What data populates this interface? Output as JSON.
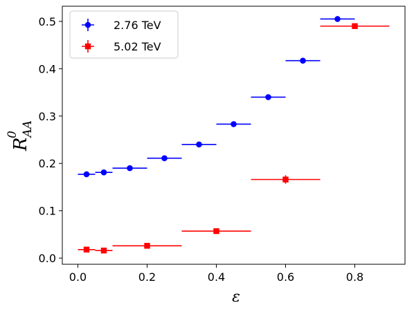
{
  "chart_data": {
    "type": "scatter",
    "title": "",
    "xlabel": "ε",
    "ylabel": {
      "main": "R",
      "sup": "0",
      "sub": "AA"
    },
    "xlim": [
      -0.045,
      0.945
    ],
    "ylim": [
      -0.013,
      0.532
    ],
    "x_ticks": [
      0.0,
      0.2,
      0.4,
      0.6,
      0.8
    ],
    "x_tick_labels": [
      "0.0",
      "0.2",
      "0.4",
      "0.6",
      "0.8"
    ],
    "y_ticks": [
      0.0,
      0.1,
      0.2,
      0.3,
      0.4,
      0.5
    ],
    "y_tick_labels": [
      "0.0",
      "0.1",
      "0.2",
      "0.3",
      "0.4",
      "0.5"
    ],
    "grid": false,
    "legend": "top-left",
    "series": [
      {
        "name": "2.76 TeV",
        "color": "#0000ff",
        "marker": "circle",
        "points": [
          {
            "x0": 0.0,
            "x1": 0.05,
            "xc": 0.025,
            "y": 0.177,
            "yerr": 0.004
          },
          {
            "x0": 0.05,
            "x1": 0.1,
            "xc": 0.075,
            "y": 0.181,
            "yerr": 0.004
          },
          {
            "x0": 0.1,
            "x1": 0.2,
            "xc": 0.15,
            "y": 0.19,
            "yerr": 0.004
          },
          {
            "x0": 0.2,
            "x1": 0.3,
            "xc": 0.25,
            "y": 0.211,
            "yerr": 0.004
          },
          {
            "x0": 0.3,
            "x1": 0.4,
            "xc": 0.35,
            "y": 0.24,
            "yerr": 0.004
          },
          {
            "x0": 0.4,
            "x1": 0.5,
            "xc": 0.45,
            "y": 0.283,
            "yerr": 0.004
          },
          {
            "x0": 0.5,
            "x1": 0.6,
            "xc": 0.55,
            "y": 0.34,
            "yerr": 0.004
          },
          {
            "x0": 0.6,
            "x1": 0.7,
            "xc": 0.65,
            "y": 0.417,
            "yerr": 0.004
          },
          {
            "x0": 0.7,
            "x1": 0.8,
            "xc": 0.75,
            "y": 0.505,
            "yerr": 0.004
          }
        ]
      },
      {
        "name": "5.02 TeV",
        "color": "#ff0000",
        "marker": "square",
        "points": [
          {
            "x0": 0.0,
            "x1": 0.05,
            "xc": 0.025,
            "y": 0.018,
            "yerr": 0.004
          },
          {
            "x0": 0.05,
            "x1": 0.1,
            "xc": 0.075,
            "y": 0.016,
            "yerr": 0.004
          },
          {
            "x0": 0.1,
            "x1": 0.3,
            "xc": 0.2,
            "y": 0.026,
            "yerr": 0.004
          },
          {
            "x0": 0.3,
            "x1": 0.5,
            "xc": 0.4,
            "y": 0.057,
            "yerr": 0.004
          },
          {
            "x0": 0.5,
            "x1": 0.7,
            "xc": 0.6,
            "y": 0.166,
            "yerr": 0.009
          },
          {
            "x0": 0.7,
            "x1": 0.9,
            "xc": 0.8,
            "y": 0.49,
            "yerr": 0.004
          }
        ]
      }
    ]
  }
}
